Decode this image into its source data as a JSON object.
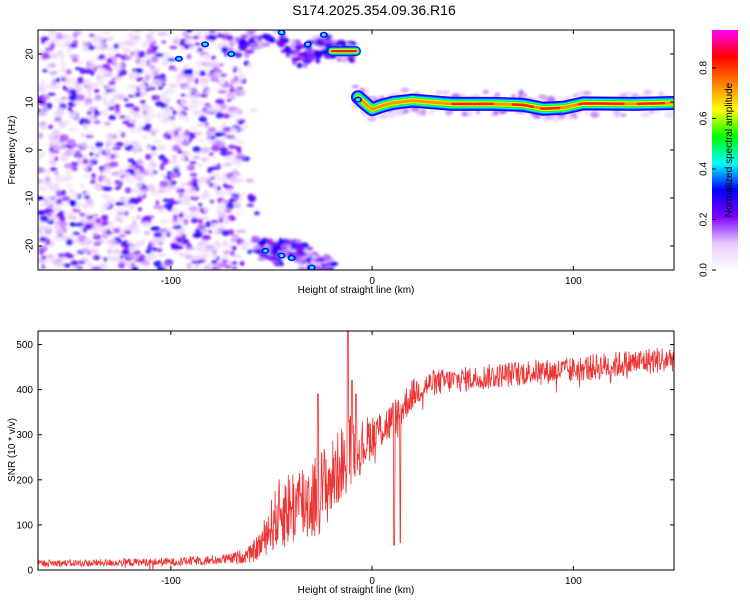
{
  "title": "S174.2025.354.09.36.R16",
  "chart_data": [
    {
      "type": "heatmap",
      "title": "S174.2025.354.09.36.R16",
      "xlabel": "Height of straight line (km)",
      "ylabel": "Frequency (Hz)",
      "xlim": [
        -166,
        150
      ],
      "ylim": [
        -25,
        25
      ],
      "xticks": [
        -100,
        0,
        100
      ],
      "yticks": [
        -20,
        -10,
        0,
        10,
        20
      ],
      "grid": false,
      "colorbar": {
        "label": "Normalized spectral amplitude",
        "range": [
          0,
          0.95
        ],
        "ticks": [
          0.0,
          0.2,
          0.4,
          0.6,
          0.8
        ],
        "colors": [
          "#ffffff",
          "#e6c8ff",
          "#7f00ff",
          "#0000ff",
          "#00ffff",
          "#00ff00",
          "#ffff00",
          "#ff8000",
          "#ff0000",
          "#ff00ff"
        ]
      },
      "features": {
        "noise_region_x": [
          -166,
          -65
        ],
        "upper_streak_points": [
          [
            -70,
            21
          ],
          [
            -48,
            24
          ],
          [
            -35,
            19
          ],
          [
            -25,
            22
          ],
          [
            -20,
            21
          ],
          [
            -15,
            20.5
          ],
          [
            -8,
            20.5
          ]
        ],
        "lower_blob_points": [
          [
            -58,
            -20
          ],
          [
            -48,
            -22
          ],
          [
            -42,
            -20.5
          ],
          [
            -35,
            -22
          ],
          [
            -28,
            -24
          ],
          [
            -22,
            -25
          ]
        ],
        "ridge_points": [
          [
            -7,
            11
          ],
          [
            -3,
            9.5
          ],
          [
            0,
            8.5
          ],
          [
            5,
            9.2
          ],
          [
            10,
            9.8
          ],
          [
            20,
            10.3
          ],
          [
            40,
            9.6
          ],
          [
            60,
            9.6
          ],
          [
            75,
            9.4
          ],
          [
            85,
            8.6
          ],
          [
            95,
            8.8
          ],
          [
            105,
            9.7
          ],
          [
            130,
            9.6
          ],
          [
            150,
            9.8
          ]
        ]
      }
    },
    {
      "type": "line",
      "xlabel": "Height of straight line (km)",
      "ylabel": "SNR (10 * v/v)",
      "xlim": [
        -166,
        150
      ],
      "ylim": [
        0,
        530
      ],
      "xticks": [
        -100,
        0,
        100
      ],
      "yticks": [
        0,
        100,
        200,
        300,
        400,
        500
      ],
      "grid": false,
      "color": "#ee3333",
      "series": [
        {
          "x": [
            -166,
            -140,
            -120,
            -100,
            -90,
            -80,
            -70,
            -60,
            -55,
            -50,
            -45,
            -40,
            -35,
            -30,
            -25,
            -20,
            -15,
            -10,
            -5,
            0,
            5,
            10,
            15,
            20,
            25,
            30,
            40,
            50,
            60,
            70,
            80,
            90,
            100,
            110,
            120,
            130,
            140,
            150
          ],
          "values": [
            15,
            15,
            17,
            18,
            20,
            22,
            25,
            35,
            60,
            100,
            130,
            140,
            150,
            160,
            180,
            200,
            240,
            270,
            275,
            300,
            315,
            330,
            360,
            390,
            405,
            415,
            420,
            425,
            430,
            435,
            440,
            440,
            445,
            450,
            455,
            460,
            465,
            470
          ],
          "noise_amplitude": [
            8,
            8,
            9,
            9,
            10,
            11,
            12,
            20,
            35,
            60,
            85,
            90,
            95,
            100,
            95,
            90,
            80,
            80,
            60,
            50,
            45,
            45,
            40,
            35,
            30,
            30,
            28,
            28,
            28,
            28,
            28,
            28,
            28,
            30,
            30,
            30,
            30,
            30
          ]
        }
      ],
      "spikes": [
        [
          -27,
          390
        ],
        [
          -12,
          528
        ],
        [
          -10,
          420
        ],
        [
          -8,
          390
        ],
        [
          11,
          55
        ],
        [
          14,
          60
        ]
      ]
    }
  ]
}
